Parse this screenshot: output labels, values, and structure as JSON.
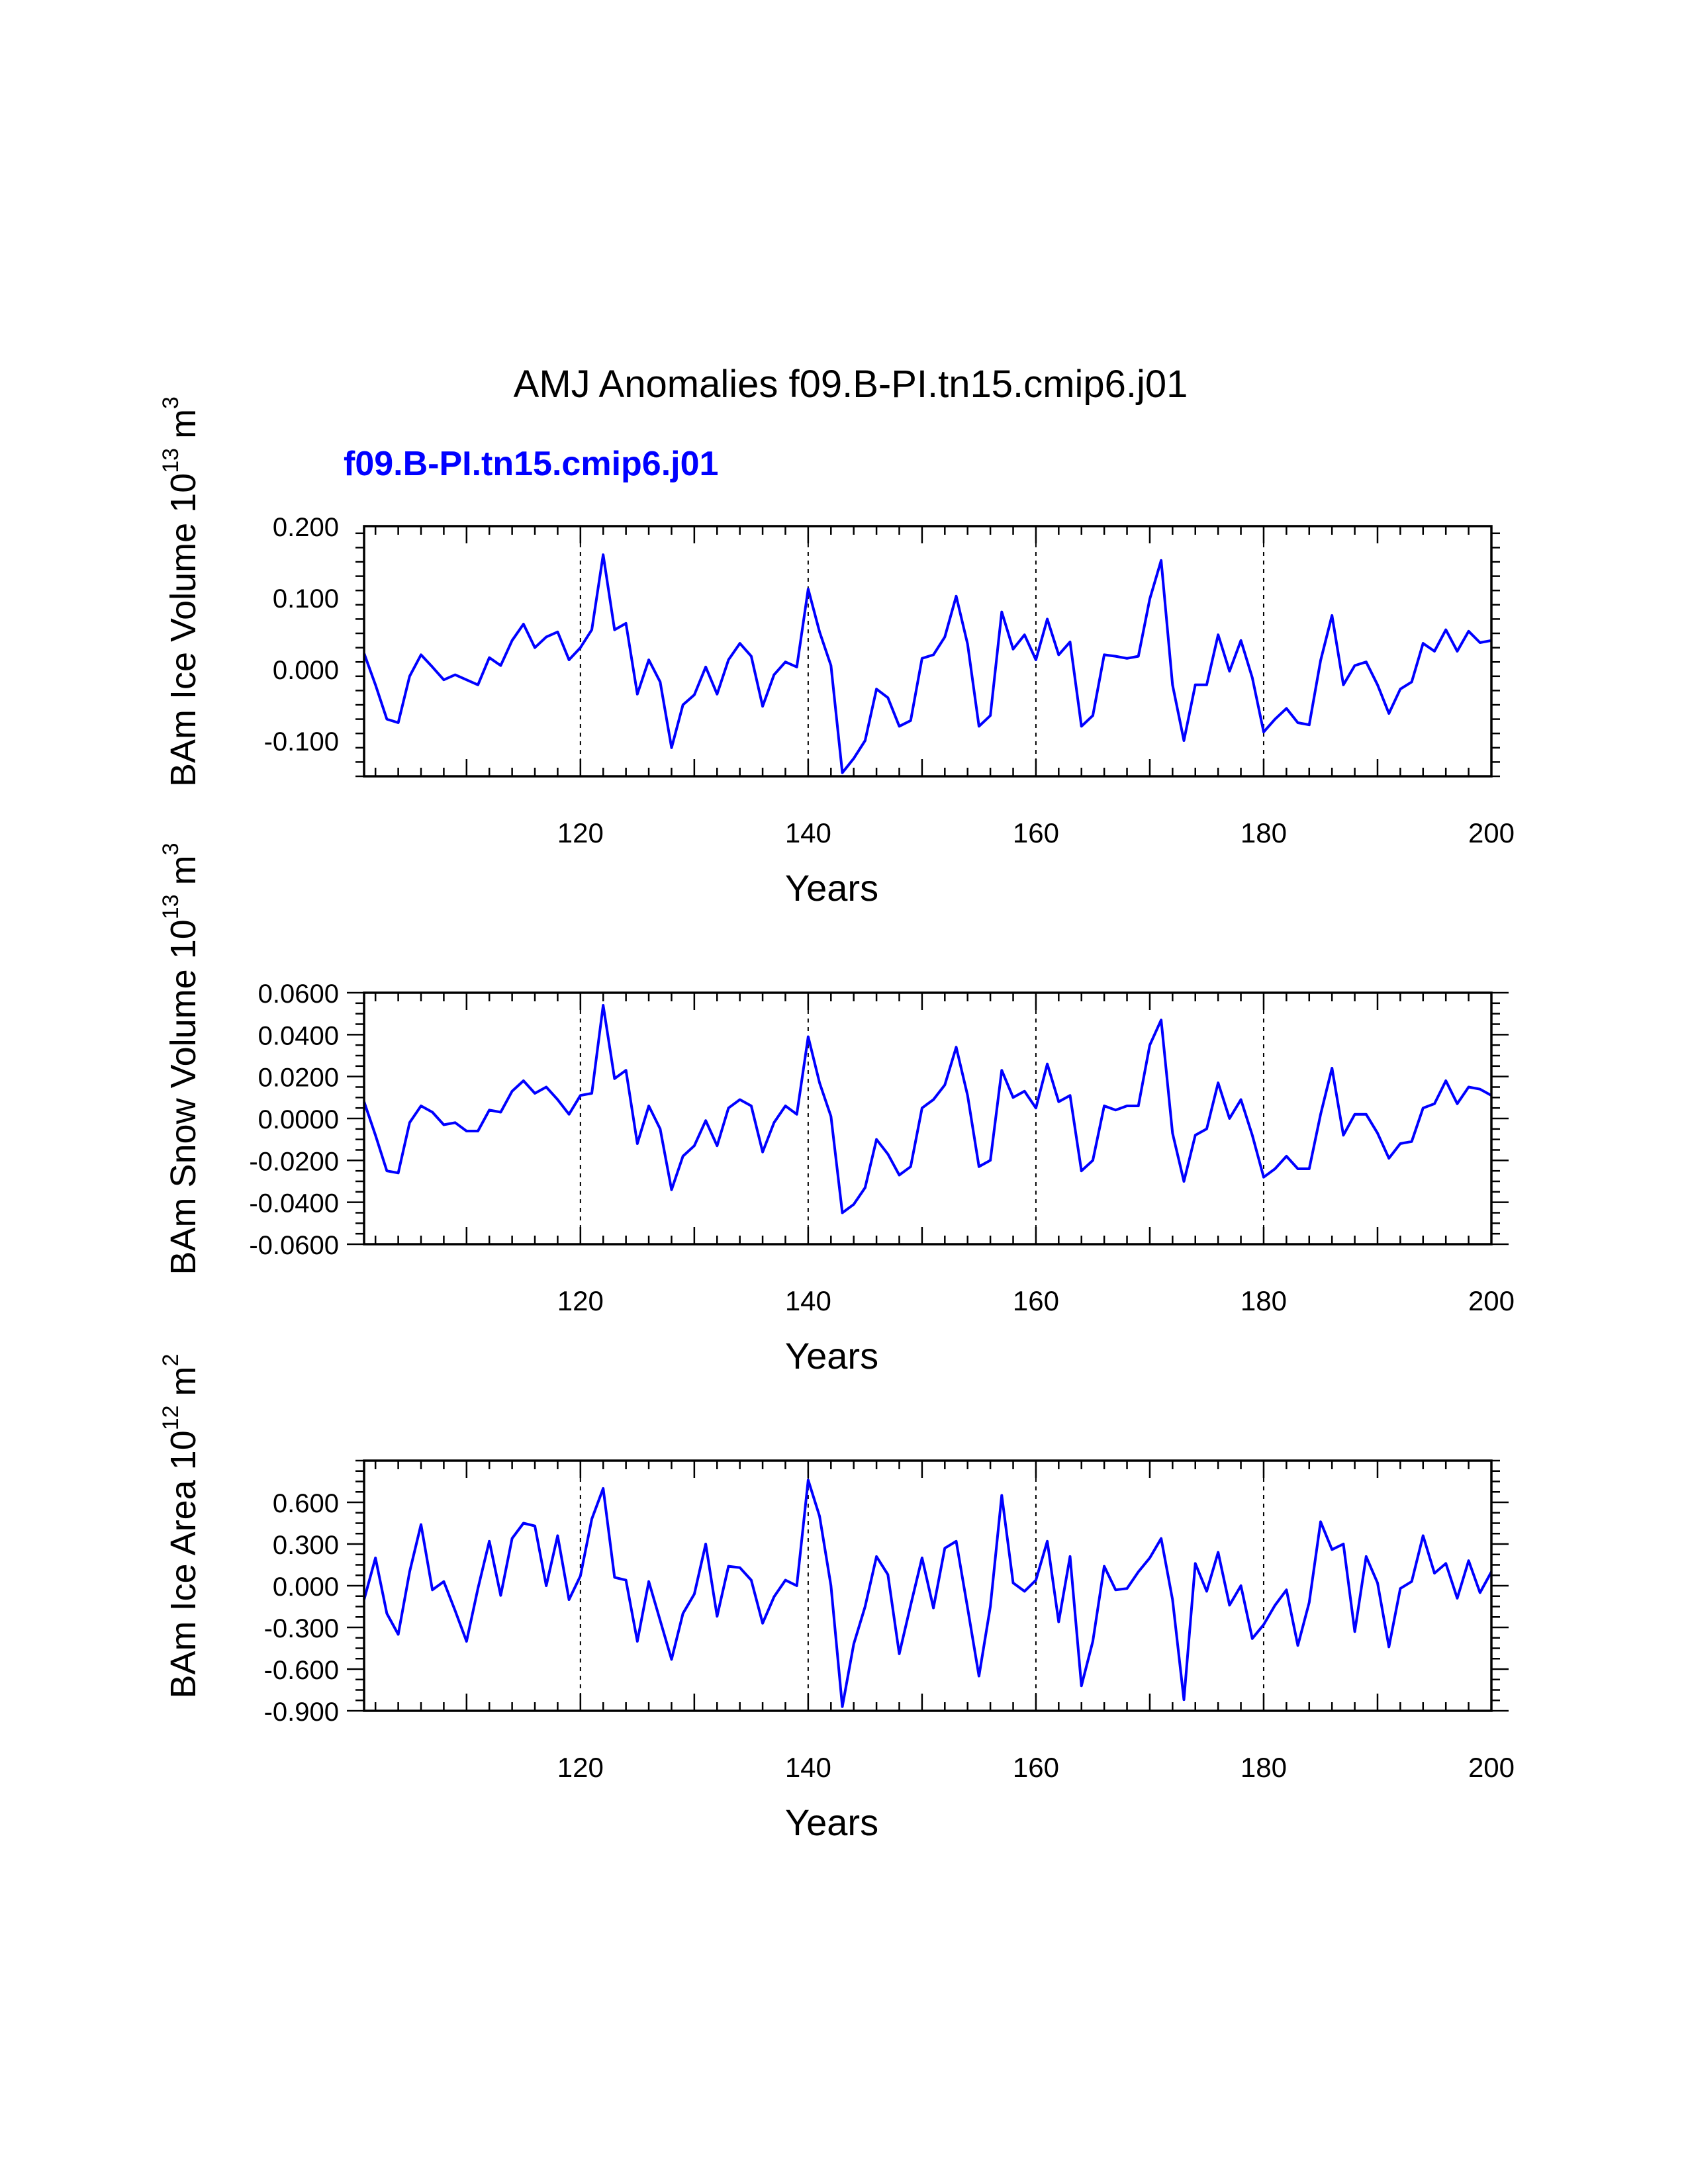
{
  "figure": {
    "title": "AMJ Anomalies f09.B-PI.tn15.cmip6.j01",
    "case_label": "f09.B-PI.tn15.cmip6.j01",
    "series_color": "#0000ff"
  },
  "chart_data": [
    {
      "type": "line",
      "ylabel": "BAm Ice Volume 10",
      "ylabel_exp": "13",
      "ylabel_unit": "m",
      "ylabel_unit_exp": "3",
      "xlabel": "Years",
      "xlim": [
        101,
        200
      ],
      "ylim": [
        -0.15,
        0.2
      ],
      "xticks": [
        120,
        140,
        160,
        180,
        200
      ],
      "xtick_labels": [
        "120",
        "140",
        "160",
        "180",
        "200"
      ],
      "yticks": [
        0.2,
        0.1,
        0.0,
        -0.1
      ],
      "ytick_labels": [
        "0.200",
        "0.100",
        "0.000",
        "-0.100"
      ],
      "y_minor_step": 0.02,
      "vlines": [
        120,
        140,
        160,
        180
      ],
      "x_start": 101,
      "values": [
        0.022,
        -0.022,
        -0.07,
        -0.075,
        -0.01,
        0.02,
        0.003,
        -0.015,
        -0.008,
        -0.015,
        -0.022,
        0.016,
        0.005,
        0.04,
        0.063,
        0.03,
        0.045,
        0.052,
        0.013,
        0.03,
        0.055,
        0.16,
        0.055,
        0.064,
        -0.035,
        0.013,
        -0.018,
        -0.11,
        -0.05,
        -0.036,
        0.003,
        -0.035,
        0.013,
        0.036,
        0.018,
        -0.052,
        -0.008,
        0.01,
        0.003,
        0.112,
        0.052,
        0.005,
        -0.145,
        -0.125,
        -0.1,
        -0.028,
        -0.04,
        -0.08,
        -0.072,
        0.015,
        0.02,
        0.045,
        0.102,
        0.035,
        -0.08,
        -0.065,
        0.08,
        0.028,
        0.048,
        0.013,
        0.07,
        0.02,
        0.038,
        -0.08,
        -0.065,
        0.02,
        0.018,
        0.015,
        0.018,
        0.098,
        0.152,
        -0.022,
        -0.1,
        -0.022,
        -0.022,
        0.048,
        -0.003,
        0.04,
        -0.012,
        -0.088,
        -0.07,
        -0.055,
        -0.075,
        -0.078,
        0.012,
        0.075,
        -0.022,
        0.005,
        0.01,
        -0.022,
        -0.062,
        -0.028,
        -0.018,
        0.036,
        0.025,
        0.055,
        0.025,
        0.053,
        0.037,
        0.04
      ]
    },
    {
      "type": "line",
      "ylabel": "BAm Snow Volume 10",
      "ylabel_exp": "13",
      "ylabel_unit": "m",
      "ylabel_unit_exp": "3",
      "xlabel": "Years",
      "xlim": [
        101,
        200
      ],
      "ylim": [
        -0.06,
        0.06
      ],
      "xticks": [
        120,
        140,
        160,
        180,
        200
      ],
      "xtick_labels": [
        "120",
        "140",
        "160",
        "180",
        "200"
      ],
      "yticks": [
        0.06,
        0.04,
        0.02,
        0.0,
        -0.02,
        -0.04,
        -0.06
      ],
      "ytick_labels": [
        "0.0600",
        "0.0400",
        "0.0200",
        "0.0000",
        "-0.0200",
        "-0.0400",
        "-0.0600"
      ],
      "y_minor_step": 0.005,
      "vlines": [
        120,
        140,
        160,
        180
      ],
      "x_start": 101,
      "values": [
        0.008,
        -0.008,
        -0.025,
        -0.026,
        -0.002,
        0.006,
        0.003,
        -0.003,
        -0.002,
        -0.006,
        -0.006,
        0.004,
        0.003,
        0.013,
        0.018,
        0.012,
        0.015,
        0.009,
        0.002,
        0.011,
        0.012,
        0.054,
        0.019,
        0.023,
        -0.012,
        0.006,
        -0.005,
        -0.034,
        -0.018,
        -0.013,
        -0.001,
        -0.013,
        0.005,
        0.009,
        0.006,
        -0.016,
        -0.002,
        0.006,
        0.002,
        0.039,
        0.017,
        0.001,
        -0.045,
        -0.041,
        -0.033,
        -0.01,
        -0.017,
        -0.027,
        -0.023,
        0.005,
        0.009,
        0.016,
        0.034,
        0.011,
        -0.023,
        -0.02,
        0.023,
        0.01,
        0.013,
        0.005,
        0.026,
        0.008,
        0.011,
        -0.025,
        -0.02,
        0.006,
        0.004,
        0.006,
        0.006,
        0.035,
        0.047,
        -0.007,
        -0.03,
        -0.008,
        -0.005,
        0.017,
        0.0,
        0.009,
        -0.008,
        -0.028,
        -0.024,
        -0.018,
        -0.024,
        -0.024,
        0.002,
        0.024,
        -0.008,
        0.002,
        0.002,
        -0.007,
        -0.019,
        -0.012,
        -0.011,
        0.005,
        0.007,
        0.018,
        0.007,
        0.015,
        0.014,
        0.011
      ]
    },
    {
      "type": "line",
      "ylabel": "BAm Ice Area 10",
      "ylabel_exp": "12",
      "ylabel_unit": "m",
      "ylabel_unit_exp": "2",
      "xlabel": "Years",
      "xlim": [
        101,
        200
      ],
      "ylim": [
        -0.9,
        0.9
      ],
      "xticks": [
        120,
        140,
        160,
        180,
        200
      ],
      "xtick_labels": [
        "120",
        "140",
        "160",
        "180",
        "200"
      ],
      "yticks": [
        0.6,
        0.3,
        0.0,
        -0.3,
        -0.6,
        -0.9
      ],
      "ytick_labels": [
        "0.600",
        "0.300",
        "0.000",
        "-0.300",
        "-0.600",
        "-0.900"
      ],
      "y_minor_step": 0.075,
      "vlines": [
        120,
        140,
        160,
        180
      ],
      "x_start": 101,
      "values": [
        -0.1,
        0.2,
        -0.2,
        -0.35,
        0.1,
        0.44,
        -0.03,
        0.03,
        -0.18,
        -0.4,
        -0.02,
        0.32,
        -0.07,
        0.34,
        0.45,
        0.43,
        0.0,
        0.36,
        -0.1,
        0.07,
        0.48,
        0.7,
        0.06,
        0.04,
        -0.4,
        0.03,
        -0.25,
        -0.53,
        -0.2,
        -0.06,
        0.3,
        -0.22,
        0.14,
        0.13,
        0.04,
        -0.27,
        -0.08,
        0.04,
        0.0,
        0.76,
        0.5,
        0.0,
        -0.87,
        -0.42,
        -0.15,
        0.21,
        0.08,
        -0.49,
        -0.14,
        0.2,
        -0.16,
        0.27,
        0.32,
        -0.16,
        -0.65,
        -0.15,
        0.65,
        0.02,
        -0.04,
        0.04,
        0.32,
        -0.26,
        0.21,
        -0.72,
        -0.4,
        0.14,
        -0.03,
        -0.02,
        0.1,
        0.2,
        0.34,
        -0.1,
        -0.82,
        0.16,
        -0.04,
        0.24,
        -0.14,
        0.0,
        -0.38,
        -0.28,
        -0.14,
        -0.03,
        -0.43,
        -0.12,
        0.46,
        0.26,
        0.3,
        -0.33,
        0.21,
        0.02,
        -0.44,
        -0.02,
        0.03,
        0.36,
        0.09,
        0.16,
        -0.09,
        0.18,
        -0.05,
        0.1
      ]
    }
  ]
}
